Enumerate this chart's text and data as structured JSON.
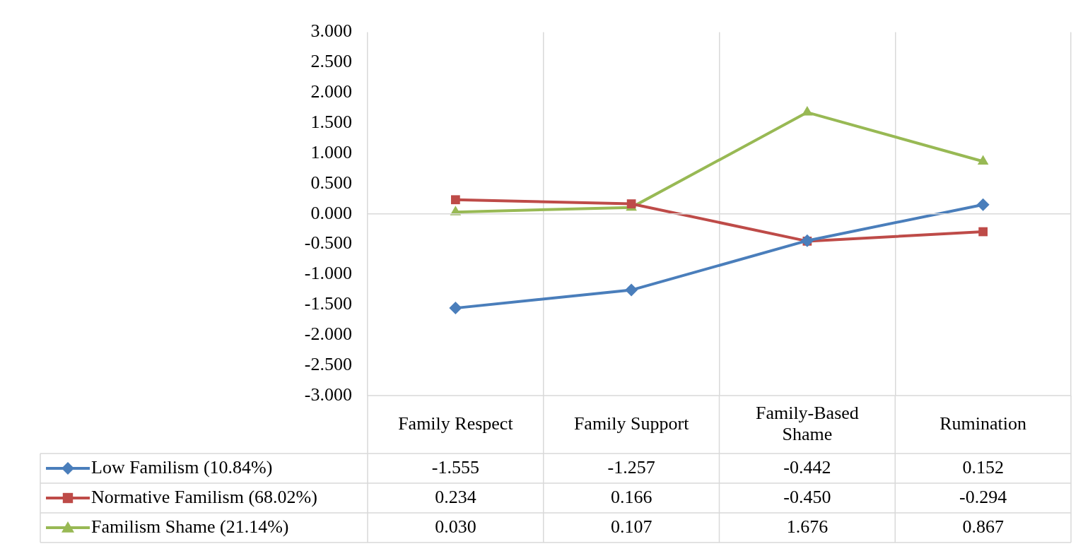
{
  "chart_data": {
    "type": "line",
    "categories": [
      "Family Respect",
      "Family Support",
      "Family-Based Shame",
      "Rumination"
    ],
    "series": [
      {
        "name": "Low Familism (10.84%)",
        "color": "#4a7ebb",
        "marker": "diamond",
        "values": [
          -1.555,
          -1.257,
          -0.442,
          0.152
        ],
        "value_labels": [
          "-1.555",
          "-1.257",
          "-0.442",
          "0.152"
        ]
      },
      {
        "name": "Normative Familism (68.02%)",
        "color": "#be4b48",
        "marker": "square",
        "values": [
          0.234,
          0.166,
          -0.45,
          -0.294
        ],
        "value_labels": [
          "0.234",
          "0.166",
          "-0.450",
          "-0.294"
        ]
      },
      {
        "name": "Familism Shame (21.14%)",
        "color": "#98b954",
        "marker": "triangle",
        "values": [
          0.03,
          0.107,
          1.676,
          0.867
        ],
        "value_labels": [
          "0.030",
          "0.107",
          "1.676",
          "0.867"
        ]
      }
    ],
    "ylim": [
      -3,
      3
    ],
    "yticks": [
      {
        "value": -3,
        "label": "-3.000"
      },
      {
        "value": -2.5,
        "label": "-2.500"
      },
      {
        "value": -2,
        "label": "-2.000"
      },
      {
        "value": -1.5,
        "label": "-1.500"
      },
      {
        "value": -1,
        "label": "-1.000"
      },
      {
        "value": -0.5,
        "label": "-0.500"
      },
      {
        "value": 0,
        "label": "0.000"
      },
      {
        "value": 0.5,
        "label": "0.500"
      },
      {
        "value": 1,
        "label": "1.000"
      },
      {
        "value": 1.5,
        "label": "1.500"
      },
      {
        "value": 2,
        "label": "2.000"
      },
      {
        "value": 2.5,
        "label": "2.500"
      },
      {
        "value": 3,
        "label": "3.000"
      }
    ],
    "grid": "x",
    "legend": "bottom",
    "line_style": "solid",
    "ref_lines": [
      {
        "axis": "y",
        "value": 0,
        "color": "#d9d9d9"
      }
    ]
  }
}
